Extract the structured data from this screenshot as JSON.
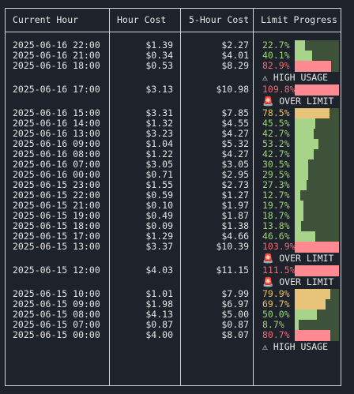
{
  "headers": {
    "hour": "Current Hour",
    "cost": "Hour Cost",
    "five": "5-Hour Cost",
    "limit": "Limit Progress"
  },
  "colors": {
    "green": "#9ed37a",
    "yellow": "#e8c36a",
    "red": "#f06a78",
    "bar_green": "#a8d48a",
    "bar_yellow": "#e8c37a",
    "bar_red": "#ff8a92",
    "bar_track": "#3d5238"
  },
  "rows": [
    {
      "hour": "2025-06-16 22:00",
      "cost": "$1.39",
      "five": "$2.27",
      "pct": "22.7%",
      "fraction": 0.227,
      "level": "green"
    },
    {
      "hour": "2025-06-16 21:00",
      "cost": "$0.34",
      "five": "$4.01",
      "pct": "40.1%",
      "fraction": 0.401,
      "level": "green"
    },
    {
      "hour": "2025-06-16 18:00",
      "cost": "$0.53",
      "five": "$8.29",
      "pct": "82.9%",
      "fraction": 0.829,
      "level": "red",
      "warning": "⚠ HIGH USAGE"
    },
    {
      "hour": "2025-06-16 17:00",
      "cost": "$3.13",
      "five": "$10.98",
      "pct": "109.8%",
      "fraction": 1.0,
      "level": "red",
      "warning": "🚨 OVER LIMIT"
    },
    {
      "hour": "2025-06-16 15:00",
      "cost": "$3.31",
      "five": "$7.85",
      "pct": "78.5%",
      "fraction": 0.785,
      "level": "yellow"
    },
    {
      "hour": "2025-06-16 14:00",
      "cost": "$1.32",
      "five": "$4.55",
      "pct": "45.5%",
      "fraction": 0.455,
      "level": "green"
    },
    {
      "hour": "2025-06-16 13:00",
      "cost": "$3.23",
      "five": "$4.27",
      "pct": "42.7%",
      "fraction": 0.427,
      "level": "green"
    },
    {
      "hour": "2025-06-16 09:00",
      "cost": "$1.04",
      "five": "$5.32",
      "pct": "53.2%",
      "fraction": 0.532,
      "level": "green"
    },
    {
      "hour": "2025-06-16 08:00",
      "cost": "$1.22",
      "five": "$4.27",
      "pct": "42.7%",
      "fraction": 0.427,
      "level": "green"
    },
    {
      "hour": "2025-06-16 07:00",
      "cost": "$3.05",
      "five": "$3.05",
      "pct": "30.5%",
      "fraction": 0.305,
      "level": "green"
    },
    {
      "hour": "2025-06-16 00:00",
      "cost": "$0.71",
      "five": "$2.95",
      "pct": "29.5%",
      "fraction": 0.295,
      "level": "green"
    },
    {
      "hour": "2025-06-15 23:00",
      "cost": "$1.55",
      "five": "$2.73",
      "pct": "27.3%",
      "fraction": 0.273,
      "level": "green"
    },
    {
      "hour": "2025-06-15 22:00",
      "cost": "$0.59",
      "five": "$1.27",
      "pct": "12.7%",
      "fraction": 0.127,
      "level": "green"
    },
    {
      "hour": "2025-06-15 21:00",
      "cost": "$0.10",
      "five": "$1.97",
      "pct": "19.7%",
      "fraction": 0.197,
      "level": "green"
    },
    {
      "hour": "2025-06-15 19:00",
      "cost": "$0.49",
      "five": "$1.87",
      "pct": "18.7%",
      "fraction": 0.187,
      "level": "green"
    },
    {
      "hour": "2025-06-15 18:00",
      "cost": "$0.09",
      "five": "$1.38",
      "pct": "13.8%",
      "fraction": 0.138,
      "level": "green"
    },
    {
      "hour": "2025-06-15 17:00",
      "cost": "$1.29",
      "five": "$4.66",
      "pct": "46.6%",
      "fraction": 0.466,
      "level": "green"
    },
    {
      "hour": "2025-06-15 13:00",
      "cost": "$3.37",
      "five": "$10.39",
      "pct": "103.9%",
      "fraction": 1.0,
      "level": "red",
      "warning": "🚨 OVER LIMIT"
    },
    {
      "hour": "2025-06-15 12:00",
      "cost": "$4.03",
      "five": "$11.15",
      "pct": "111.5%",
      "fraction": 1.0,
      "level": "red",
      "warning": "🚨 OVER LIMIT"
    },
    {
      "hour": "2025-06-15 10:00",
      "cost": "$1.01",
      "five": "$7.99",
      "pct": "79.9%",
      "fraction": 0.799,
      "level": "yellow"
    },
    {
      "hour": "2025-06-15 09:00",
      "cost": "$1.98",
      "five": "$6.97",
      "pct": "69.7%",
      "fraction": 0.697,
      "level": "yellow"
    },
    {
      "hour": "2025-06-15 08:00",
      "cost": "$4.13",
      "five": "$5.00",
      "pct": "50.0%",
      "fraction": 0.5,
      "level": "green"
    },
    {
      "hour": "2025-06-15 07:00",
      "cost": "$0.87",
      "five": "$0.87",
      "pct": "8.7%",
      "fraction": 0.087,
      "level": "green"
    },
    {
      "hour": "2025-06-15 00:00",
      "cost": "$4.00",
      "five": "$8.07",
      "pct": "80.7%",
      "fraction": 0.807,
      "level": "red",
      "warning": "⚠ HIGH USAGE"
    }
  ]
}
